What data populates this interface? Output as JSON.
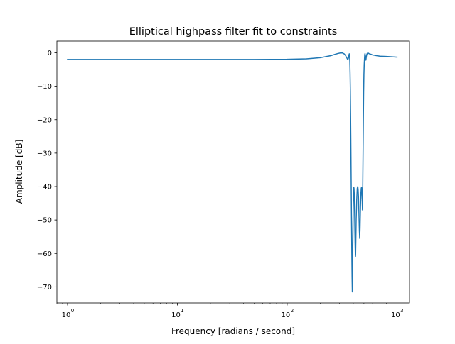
{
  "chart_data": {
    "type": "line",
    "title": "Elliptical highpass filter fit to constraints",
    "xlabel": "Frequency [radians / second]",
    "ylabel": "Amplitude [dB]",
    "xscale": "log",
    "xlim": [
      0.8,
      1300
    ],
    "ylim": [
      -74.8,
      3.5
    ],
    "xticks": [
      {
        "value": 1,
        "label": "10",
        "exp": "0"
      },
      {
        "value": 10,
        "label": "10",
        "exp": "1"
      },
      {
        "value": 100,
        "label": "10",
        "exp": "2"
      },
      {
        "value": 1000,
        "label": "10",
        "exp": "3"
      }
    ],
    "yticks": [
      {
        "value": 0,
        "label": "0"
      },
      {
        "value": -10,
        "label": "−10"
      },
      {
        "value": -20,
        "label": "−20"
      },
      {
        "value": -30,
        "label": "−30"
      },
      {
        "value": -40,
        "label": "−40"
      },
      {
        "value": -50,
        "label": "−50"
      },
      {
        "value": -60,
        "label": "−60"
      },
      {
        "value": -70,
        "label": "−70"
      }
    ],
    "grid": false,
    "legend": "none",
    "colors": {
      "line": "#1f77b4"
    },
    "series": [
      {
        "x": [
          1,
          5,
          20,
          50,
          100,
          150,
          200,
          250,
          270,
          290,
          305,
          318,
          330,
          340,
          348,
          354,
          358,
          362,
          364,
          366,
          368,
          370,
          372,
          374,
          376,
          378,
          380,
          382,
          384,
          386,
          388,
          390,
          392,
          394,
          396,
          398,
          400,
          402,
          404,
          406,
          408,
          410,
          412,
          414,
          416,
          418,
          420,
          422,
          425,
          430,
          435,
          440,
          443,
          446,
          449,
          452,
          455,
          458,
          461,
          464,
          467,
          470,
          473,
          476,
          479,
          482,
          485,
          488,
          491,
          494,
          497,
          500,
          503,
          506,
          509,
          512,
          515,
          518,
          521,
          524,
          527,
          530,
          533,
          536,
          540,
          545,
          550,
          560,
          580,
          600,
          650,
          700,
          800,
          900,
          1000
        ],
        "y": [
          -2.0,
          -2.0,
          -2.0,
          -1.98,
          -1.95,
          -1.8,
          -1.45,
          -0.85,
          -0.5,
          -0.2,
          -0.05,
          -0.05,
          -0.3,
          -0.8,
          -1.4,
          -1.9,
          -1.95,
          -1.5,
          -0.9,
          -0.5,
          -0.3,
          -0.8,
          -2.5,
          -6,
          -11,
          -18,
          -26,
          -35,
          -44,
          -52,
          -60,
          -67,
          -71.5,
          -66,
          -58,
          -51,
          -45,
          -41,
          -40.2,
          -40.5,
          -42,
          -45,
          -49,
          -54,
          -58,
          -61,
          -60.5,
          -56.5,
          -50,
          -44,
          -40.5,
          -40,
          -41,
          -43,
          -46,
          -50,
          -53.5,
          -55.5,
          -52.5,
          -48,
          -44.2,
          -41.8,
          -40.5,
          -40.2,
          -41.5,
          -44,
          -47,
          -40,
          -30,
          -20,
          -12,
          -6.5,
          -3.5,
          -1.8,
          -0.5,
          -0.2,
          -0.9,
          -1.8,
          -2.2,
          -1.6,
          -1.0,
          -0.55,
          -0.4,
          -0.2,
          -0.1,
          -0.05,
          -0.15,
          -0.3,
          -0.45,
          -0.65,
          -0.85,
          -1.0,
          -1.1,
          -1.2,
          -1.3
        ]
      }
    ]
  }
}
